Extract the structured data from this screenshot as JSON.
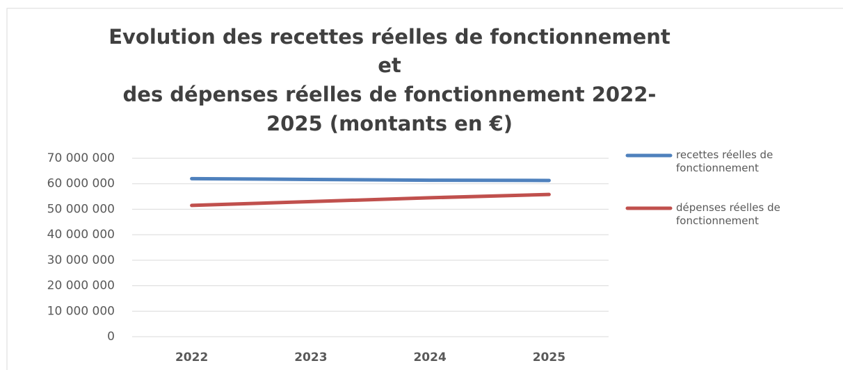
{
  "chart_data": {
    "type": "line",
    "title": [
      "Evolution des recettes réelles de fonctionnement",
      "et",
      "des dépenses réelles de fonctionnement 2022-",
      "2025 (montants en €)"
    ],
    "categories": [
      "2022",
      "2023",
      "2024",
      "2025"
    ],
    "series": [
      {
        "name": "recettes réelles de fonctionnement",
        "color": "#4f81bd",
        "values": [
          62000000,
          61700000,
          61400000,
          61300000
        ]
      },
      {
        "name": "dépenses réelles de fonctionnement",
        "color": "#c0504d",
        "values": [
          51500000,
          53000000,
          54500000,
          55800000
        ]
      }
    ],
    "ylim": [
      0,
      70000000
    ],
    "yticks": [
      0,
      {
        "value": 10000000,
        "label": "10 000 000"
      },
      {
        "value": 20000000,
        "label": "20 000 000"
      },
      {
        "value": 30000000,
        "label": "30 000 000"
      },
      {
        "value": 40000000,
        "label": "40 000 000"
      },
      {
        "value": 50000000,
        "label": "50 000 000"
      },
      {
        "value": 60000000,
        "label": "60 000 000"
      },
      {
        "value": 70000000,
        "label": "70 000 000"
      }
    ],
    "grid": true,
    "legend": "right"
  }
}
